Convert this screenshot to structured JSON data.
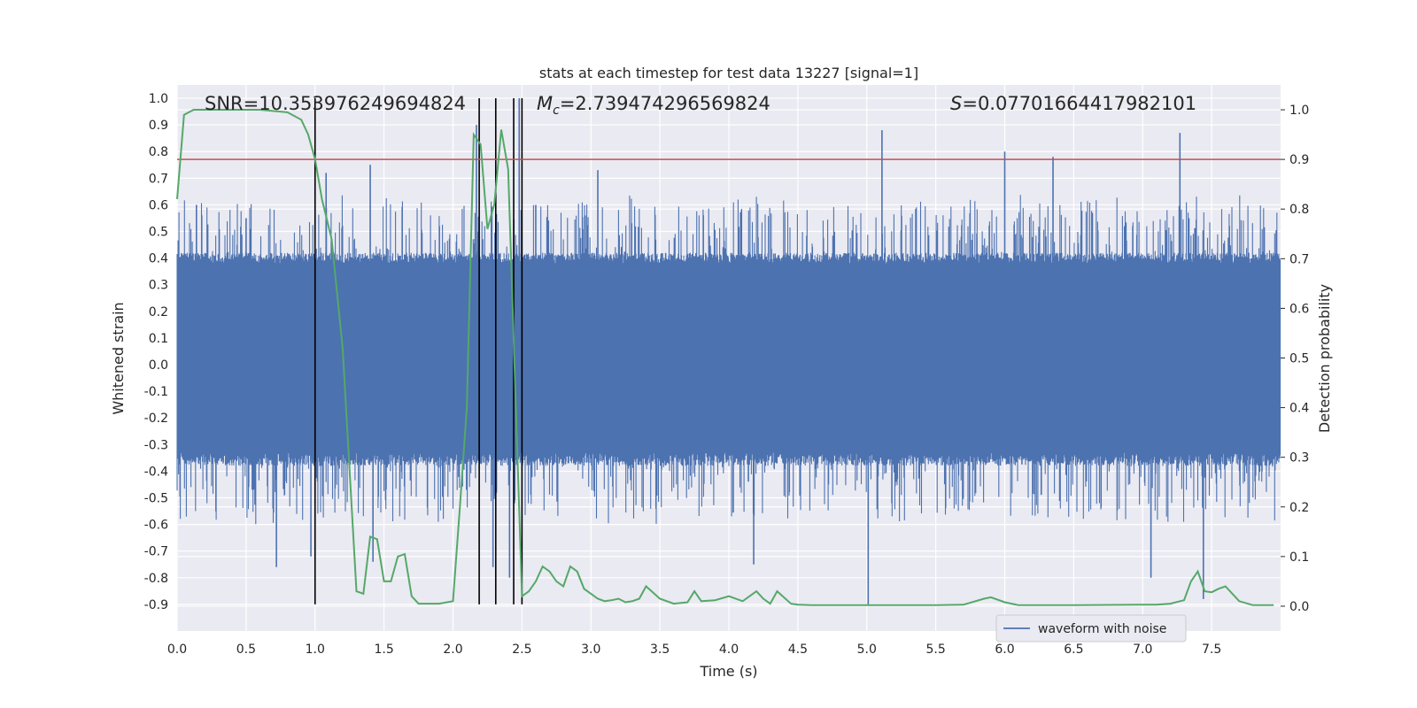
{
  "chart_data": {
    "type": "line",
    "title": "stats at each timestep for test data 13227 [signal=1]",
    "xlabel": "Time (s)",
    "ylabel": "Whitened strain",
    "ylabel_right": "Detection probability",
    "xlim": [
      0.0,
      8.0
    ],
    "ylim": [
      -1.0,
      1.05
    ],
    "ylim_right": [
      -0.05,
      1.05
    ],
    "x_ticks": [
      "0.0",
      "0.5",
      "1.0",
      "1.5",
      "2.0",
      "2.5",
      "3.0",
      "3.5",
      "4.0",
      "4.5",
      "5.0",
      "5.5",
      "6.0",
      "6.5",
      "7.0",
      "7.5"
    ],
    "y_ticks": [
      "1.0",
      "0.9",
      "0.8",
      "0.7",
      "0.6",
      "0.5",
      "0.4",
      "0.3",
      "0.2",
      "0.1",
      "0.0",
      "-0.1",
      "-0.2",
      "-0.3",
      "-0.4",
      "-0.5",
      "-0.6",
      "-0.7",
      "-0.8",
      "-0.9"
    ],
    "y_ticks_right": [
      "1.0",
      "0.9",
      "0.8",
      "0.7",
      "0.6",
      "0.5",
      "0.4",
      "0.3",
      "0.2",
      "0.1",
      "0.0"
    ],
    "grid": true,
    "legend_position": "lower-right",
    "annotations": {
      "snr": "SNR=10.353976249694824",
      "mc_symbol": "M",
      "mc_sub": "c",
      "mc_value": "=2.739474296569824",
      "s_symbol": "S",
      "s_value": "=0.07701664417982101"
    },
    "threshold_line": {
      "value": 0.9,
      "axis": "right",
      "color": "#c44e52"
    },
    "vertical_markers": [
      1.0,
      2.19,
      2.31,
      2.44,
      2.5
    ],
    "series": [
      {
        "name": "waveform with noise",
        "axis": "left",
        "color": "#4c72b0",
        "description_kind": "dense noise",
        "envelope_pos": [
          0.38,
          0.42
        ],
        "envelope_neg": [
          -0.33,
          -0.38
        ],
        "spikes": [
          [
            0.14,
            0.6
          ],
          [
            0.5,
            0.55
          ],
          [
            0.72,
            -0.76
          ],
          [
            0.97,
            -0.72
          ],
          [
            1.08,
            0.72
          ],
          [
            1.4,
            0.75
          ],
          [
            1.42,
            -0.74
          ],
          [
            2.17,
            0.9
          ],
          [
            2.29,
            -0.76
          ],
          [
            2.48,
            1.0
          ],
          [
            2.41,
            -0.8
          ],
          [
            2.6,
            0.6
          ],
          [
            3.05,
            0.73
          ],
          [
            4.18,
            -0.75
          ],
          [
            5.01,
            -0.9
          ],
          [
            5.11,
            0.88
          ],
          [
            6.0,
            0.8
          ],
          [
            6.35,
            0.78
          ],
          [
            7.06,
            -0.8
          ],
          [
            7.27,
            0.87
          ],
          [
            7.44,
            -0.88
          ]
        ]
      },
      {
        "name": "detection probability",
        "axis": "right",
        "color": "#55a868",
        "x": [
          0.0,
          0.05,
          0.12,
          0.3,
          0.6,
          0.8,
          0.9,
          0.95,
          1.0,
          1.05,
          1.12,
          1.2,
          1.3,
          1.35,
          1.4,
          1.45,
          1.5,
          1.55,
          1.6,
          1.65,
          1.7,
          1.75,
          1.8,
          1.85,
          1.9,
          2.0,
          2.05,
          2.1,
          2.15,
          2.2,
          2.25,
          2.3,
          2.35,
          2.4,
          2.45,
          2.5,
          2.55,
          2.6,
          2.65,
          2.7,
          2.75,
          2.8,
          2.85,
          2.9,
          2.95,
          3.0,
          3.05,
          3.1,
          3.15,
          3.2,
          3.25,
          3.3,
          3.35,
          3.4,
          3.5,
          3.6,
          3.7,
          3.75,
          3.8,
          3.9,
          4.0,
          4.1,
          4.2,
          4.25,
          4.3,
          4.35,
          4.45,
          4.5,
          4.6,
          5.0,
          5.1,
          5.5,
          5.7,
          5.85,
          5.9,
          6.0,
          6.1,
          6.5,
          7.0,
          7.1,
          7.2,
          7.3,
          7.35,
          7.4,
          7.45,
          7.5,
          7.55,
          7.6,
          7.7,
          7.8,
          7.9,
          7.95
        ],
        "y": [
          0.82,
          0.99,
          1.0,
          1.0,
          1.0,
          0.995,
          0.98,
          0.95,
          0.9,
          0.82,
          0.74,
          0.52,
          0.03,
          0.025,
          0.14,
          0.135,
          0.05,
          0.05,
          0.1,
          0.105,
          0.02,
          0.005,
          0.005,
          0.005,
          0.005,
          0.01,
          0.2,
          0.4,
          0.95,
          0.93,
          0.76,
          0.81,
          0.96,
          0.88,
          0.45,
          0.02,
          0.03,
          0.05,
          0.08,
          0.07,
          0.05,
          0.04,
          0.08,
          0.07,
          0.035,
          0.025,
          0.015,
          0.01,
          0.012,
          0.015,
          0.008,
          0.01,
          0.015,
          0.04,
          0.015,
          0.005,
          0.008,
          0.03,
          0.01,
          0.012,
          0.02,
          0.01,
          0.03,
          0.015,
          0.005,
          0.03,
          0.005,
          0.003,
          0.002,
          0.002,
          0.002,
          0.002,
          0.003,
          0.015,
          0.018,
          0.008,
          0.002,
          0.002,
          0.003,
          0.003,
          0.005,
          0.012,
          0.05,
          0.07,
          0.03,
          0.028,
          0.035,
          0.04,
          0.01,
          0.002,
          0.002,
          0.002
        ]
      }
    ]
  }
}
